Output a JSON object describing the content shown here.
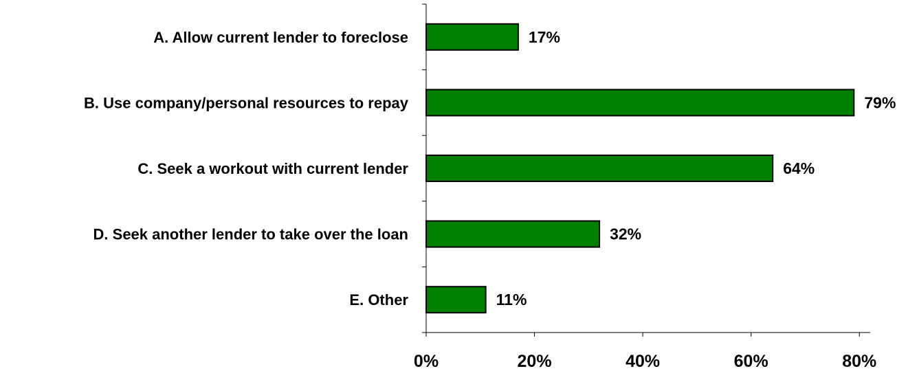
{
  "chart_data": {
    "type": "bar",
    "orientation": "horizontal",
    "categories": [
      "A. Allow current lender to foreclose",
      "B. Use company/personal resources to repay",
      "C. Seek a workout with current lender",
      "D. Seek another lender to take over the loan",
      "E. Other"
    ],
    "values": [
      17,
      79,
      64,
      32,
      11
    ],
    "data_labels": [
      "17%",
      "79%",
      "64%",
      "32%",
      "11%"
    ],
    "xlim": [
      0,
      82
    ],
    "xticks": [
      0,
      20,
      40,
      60,
      80
    ],
    "xtick_labels": [
      "0%",
      "20%",
      "40%",
      "60%",
      "80%"
    ],
    "bar_color": "#008000",
    "bar_edge_color": "#000000",
    "grid": false,
    "legend": "none"
  }
}
